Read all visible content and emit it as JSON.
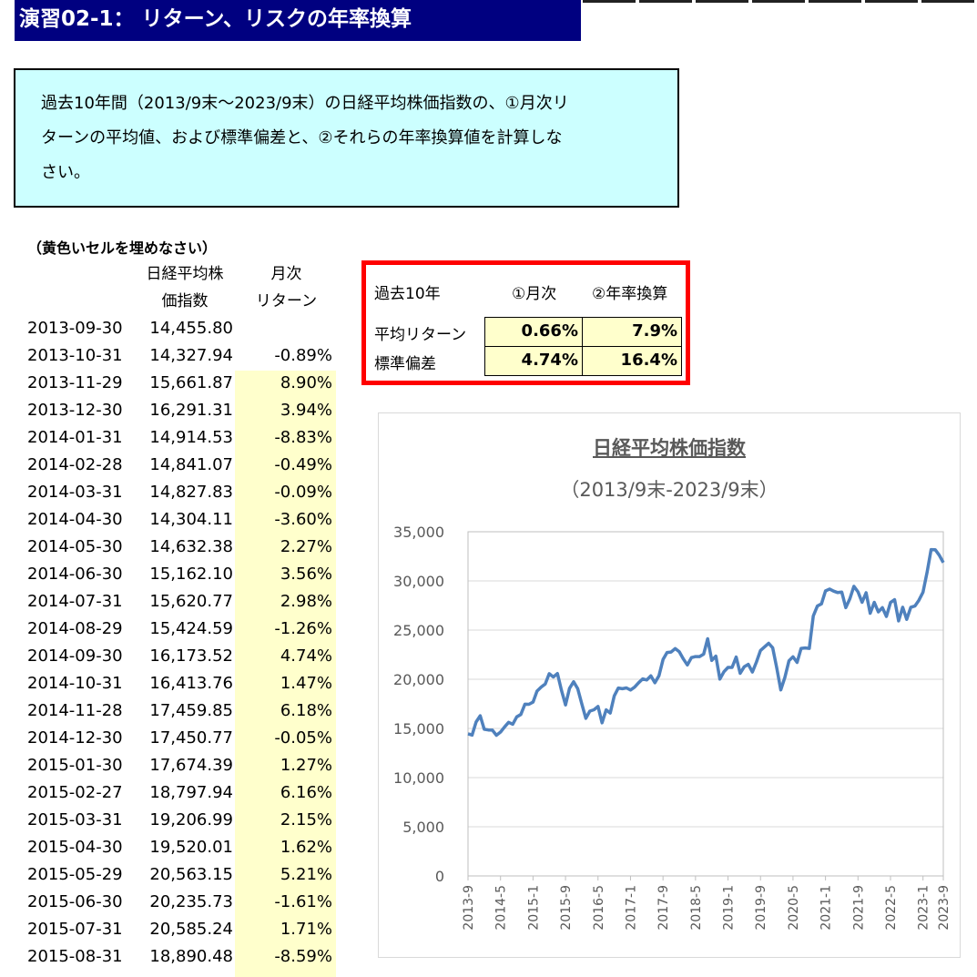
{
  "title": "演習02-1： リターン、リスクの年率換算",
  "problem": {
    "line1": "過去10年間（2013/9末～2023/9末）の日経平均株価指数の、①月次リ",
    "line2": "ターンの平均値、および標準偏差と、②それらの年率換算値を計算しな",
    "line3": "さい。"
  },
  "note": "（黄色いセルを埋めなさい）",
  "headers": {
    "price_1": "日経平均株",
    "price_2": "価指数",
    "ret_1": "月次",
    "ret_2": "リターン"
  },
  "rows": [
    {
      "date": "2013-09-30",
      "price": "14,455.80",
      "ret": ""
    },
    {
      "date": "2013-10-31",
      "price": "14,327.94",
      "ret": "-0.89%"
    },
    {
      "date": "2013-11-29",
      "price": "15,661.87",
      "ret": "8.90%"
    },
    {
      "date": "2013-12-30",
      "price": "16,291.31",
      "ret": "3.94%"
    },
    {
      "date": "2014-01-31",
      "price": "14,914.53",
      "ret": "-8.83%"
    },
    {
      "date": "2014-02-28",
      "price": "14,841.07",
      "ret": "-0.49%"
    },
    {
      "date": "2014-03-31",
      "price": "14,827.83",
      "ret": "-0.09%"
    },
    {
      "date": "2014-04-30",
      "price": "14,304.11",
      "ret": "-3.60%"
    },
    {
      "date": "2014-05-30",
      "price": "14,632.38",
      "ret": "2.27%"
    },
    {
      "date": "2014-06-30",
      "price": "15,162.10",
      "ret": "3.56%"
    },
    {
      "date": "2014-07-31",
      "price": "15,620.77",
      "ret": "2.98%"
    },
    {
      "date": "2014-08-29",
      "price": "15,424.59",
      "ret": "-1.26%"
    },
    {
      "date": "2014-09-30",
      "price": "16,173.52",
      "ret": "4.74%"
    },
    {
      "date": "2014-10-31",
      "price": "16,413.76",
      "ret": "1.47%"
    },
    {
      "date": "2014-11-28",
      "price": "17,459.85",
      "ret": "6.18%"
    },
    {
      "date": "2014-12-30",
      "price": "17,450.77",
      "ret": "-0.05%"
    },
    {
      "date": "2015-01-30",
      "price": "17,674.39",
      "ret": "1.27%"
    },
    {
      "date": "2015-02-27",
      "price": "18,797.94",
      "ret": "6.16%"
    },
    {
      "date": "2015-03-31",
      "price": "19,206.99",
      "ret": "2.15%"
    },
    {
      "date": "2015-04-30",
      "price": "19,520.01",
      "ret": "1.62%"
    },
    {
      "date": "2015-05-29",
      "price": "20,563.15",
      "ret": "5.21%"
    },
    {
      "date": "2015-06-30",
      "price": "20,235.73",
      "ret": "-1.61%"
    },
    {
      "date": "2015-07-31",
      "price": "20,585.24",
      "ret": "1.71%"
    },
    {
      "date": "2015-08-31",
      "price": "18,890.48",
      "ret": "-8.59%"
    }
  ],
  "summary": {
    "header_period": "過去10年",
    "header_monthly": "①月次",
    "header_annual": "②年率換算",
    "avg_label": "平均リターン",
    "std_label": "標準偏差",
    "avg_monthly": "0.66%",
    "avg_annual": "7.9%",
    "std_monthly": "4.74%",
    "std_annual": "16.4%"
  },
  "chart_data": {
    "type": "line",
    "title": "日経平均株価指数",
    "subtitle": "（2013/9末-2023/9末）",
    "ylim": [
      0,
      35000
    ],
    "y_ticks": [
      "0",
      "5,000",
      "10,000",
      "15,000",
      "20,000",
      "25,000",
      "30,000",
      "35,000"
    ],
    "x_ticks": [
      "2013-9",
      "2014-5",
      "2015-1",
      "2015-9",
      "2016-5",
      "2017-1",
      "2017-9",
      "2018-5",
      "2019-1",
      "2019-9",
      "2020-5",
      "2021-1",
      "2021-9",
      "2022-5",
      "2023-1",
      "2023-9"
    ],
    "series_color": "#4f81bd",
    "series": [
      {
        "values": [
          14456,
          14328,
          15662,
          16291,
          14915,
          14841,
          14828,
          14304,
          14632,
          15162,
          15621,
          15425,
          16174,
          16414,
          17460,
          17451,
          17674,
          18798,
          19207,
          19520,
          20563,
          20236,
          20585,
          18890,
          17388,
          19083,
          19747,
          19034,
          17518,
          16027,
          16759,
          16897,
          17235,
          15576,
          16887,
          16569,
          18309,
          19114,
          19041,
          19119,
          18909,
          19197,
          19651,
          20033,
          19925,
          20356,
          19646,
          20356,
          22012,
          22725,
          22765,
          23119,
          22799,
          22068,
          21454,
          22202,
          22305,
          22304,
          22554,
          24120,
          21920,
          22351,
          20015,
          20773,
          21206,
          21206,
          22259,
          20601,
          21276,
          21522,
          20731,
          21756,
          22927,
          23294,
          23656,
          23205,
          21143,
          18917,
          20194,
          21878,
          22288,
          21710,
          23140,
          23185,
          23139,
          26434,
          27444,
          27664,
          28979,
          29179,
          28966,
          28813,
          28860,
          27283,
          28192,
          29453,
          28893,
          27822,
          28792,
          26717,
          27821,
          26848,
          27280,
          26393,
          27801,
          28092,
          25938,
          27327,
          26094,
          27327,
          27446,
          28041,
          28856,
          30888,
          33189,
          33172,
          32619,
          31858
        ]
      }
    ]
  }
}
